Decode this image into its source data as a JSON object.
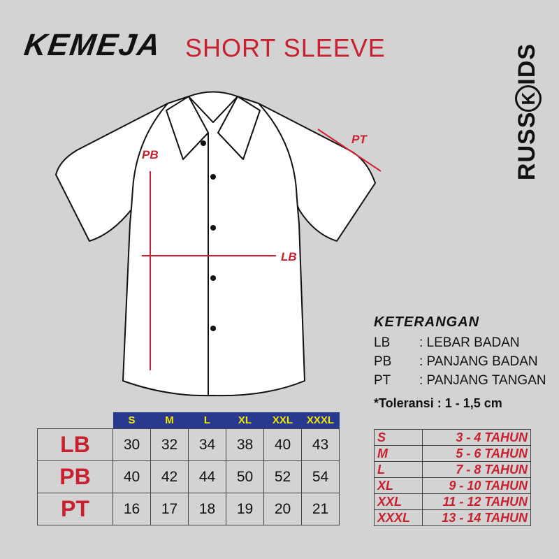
{
  "header": {
    "title": "KEMEJA",
    "subtitle": "SHORT SLEEVE",
    "brand_left": "RUSS",
    "brand_k": "K",
    "brand_right": "IDS"
  },
  "measure_labels": {
    "pb": "PB",
    "lb": "LB",
    "pt": "PT"
  },
  "legend": {
    "title": "KETERANGAN",
    "items": [
      {
        "key": "LB",
        "value": ": LEBAR BADAN"
      },
      {
        "key": "PB",
        "value": ": PANJANG BADAN"
      },
      {
        "key": "PT",
        "value": ": PANJANG TANGAN"
      }
    ],
    "tolerance": "*Toleransi : 1 - 1,5 cm"
  },
  "size_table": {
    "columns": [
      "S",
      "M",
      "L",
      "XL",
      "XXL",
      "XXXL"
    ],
    "rows": [
      {
        "label": "LB",
        "values": [
          "30",
          "32",
          "34",
          "38",
          "40",
          "43"
        ]
      },
      {
        "label": "PB",
        "values": [
          "40",
          "42",
          "44",
          "50",
          "52",
          "54"
        ]
      },
      {
        "label": "PT",
        "values": [
          "16",
          "17",
          "18",
          "19",
          "20",
          "21"
        ]
      }
    ]
  },
  "age_table": [
    {
      "size": "S",
      "age": "3 - 4  TAHUN"
    },
    {
      "size": "M",
      "age": "5 - 6  TAHUN"
    },
    {
      "size": "L",
      "age": "7 - 8  TAHUN"
    },
    {
      "size": "XL",
      "age": "9 - 10  TAHUN"
    },
    {
      "size": "XXL",
      "age": "11 - 12  TAHUN"
    },
    {
      "size": "XXXL",
      "age": "13 - 14  TAHUN"
    }
  ],
  "colors": {
    "accent_red": "#c8202f",
    "header_blue": "#2a3990",
    "header_yellow": "#f5e800",
    "background": "#d3d3d4"
  }
}
